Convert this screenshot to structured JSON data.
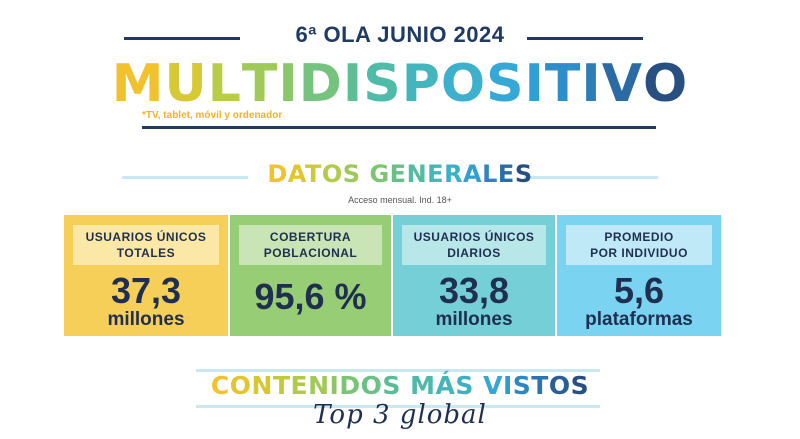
{
  "header": {
    "wave": "6ª OLA JUNIO 2024",
    "title_letters": [
      {
        "ch": "M",
        "color": "#f2c12e"
      },
      {
        "ch": "U",
        "color": "#d7c835"
      },
      {
        "ch": "L",
        "color": "#b8cc46"
      },
      {
        "ch": "T",
        "color": "#9fca57"
      },
      {
        "ch": "I",
        "color": "#8ac66a"
      },
      {
        "ch": "D",
        "color": "#74c37e"
      },
      {
        "ch": "I",
        "color": "#5fbf94"
      },
      {
        "ch": "S",
        "color": "#4fbba9"
      },
      {
        "ch": "P",
        "color": "#43b6bd"
      },
      {
        "ch": "O",
        "color": "#3cb0cc"
      },
      {
        "ch": "S",
        "color": "#35a8d6"
      },
      {
        "ch": "I",
        "color": "#329ed8"
      },
      {
        "ch": "T",
        "color": "#2f8dc9"
      },
      {
        "ch": "I",
        "color": "#2c7db8"
      },
      {
        "ch": "V",
        "color": "#2a6ba4"
      },
      {
        "ch": "O",
        "color": "#274f82"
      }
    ],
    "note": "*TV, tablet, móvil y ordenador"
  },
  "datos": {
    "title_letters": [
      {
        "ch": "D",
        "color": "#f2c12e"
      },
      {
        "ch": "A",
        "color": "#e2c530"
      },
      {
        "ch": "T",
        "color": "#cdc93c"
      },
      {
        "ch": "O",
        "color": "#b3cb4a"
      },
      {
        "ch": "S",
        "color": "#9cc95a"
      },
      {
        "ch": " ",
        "color": "#000000"
      },
      {
        "ch": "G",
        "color": "#7fc470"
      },
      {
        "ch": "E",
        "color": "#66c088"
      },
      {
        "ch": "N",
        "color": "#52bca0"
      },
      {
        "ch": "E",
        "color": "#44b7b6"
      },
      {
        "ch": "R",
        "color": "#3aafc8"
      },
      {
        "ch": "A",
        "color": "#339fd0"
      },
      {
        "ch": "L",
        "color": "#2e86bc"
      },
      {
        "ch": "E",
        "color": "#2a6ea6"
      },
      {
        "ch": "S",
        "color": "#274f82"
      }
    ],
    "subtitle": "Acceso mensual. Ind. 18+"
  },
  "cards": [
    {
      "label": "USUARIOS ÚNICOS\nTOTALES",
      "value": "37,3",
      "unit": "millones",
      "bg": "#f5cf58",
      "label_bg": "#fbe7a6"
    },
    {
      "label": "COBERTURA\nPOBLACIONAL",
      "value": "95,6 %",
      "unit": "",
      "bg": "#97cd74",
      "label_bg": "#c9e5b6"
    },
    {
      "label": "USUARIOS ÚNICOS\nDIARIOS",
      "value": "33,8",
      "unit": "millones",
      "bg": "#74d0d6",
      "label_bg": "#b8e7ea"
    },
    {
      "label": "PROMEDIO\nPOR INDIVIDUO",
      "value": "5,6",
      "unit": "plataformas",
      "bg": "#7ad3f0",
      "label_bg": "#bfe9f7"
    }
  ],
  "contenidos": {
    "title_letters": [
      {
        "ch": "C",
        "color": "#f2c12e"
      },
      {
        "ch": "O",
        "color": "#e6c42f"
      },
      {
        "ch": "N",
        "color": "#d6c733"
      },
      {
        "ch": "T",
        "color": "#c4c93b"
      },
      {
        "ch": "E",
        "color": "#b1ca47"
      },
      {
        "ch": "N",
        "color": "#9fca55"
      },
      {
        "ch": "I",
        "color": "#8dc764"
      },
      {
        "ch": "D",
        "color": "#7bc474"
      },
      {
        "ch": "O",
        "color": "#6ac185"
      },
      {
        "ch": "S",
        "color": "#5bbd97"
      },
      {
        "ch": " ",
        "color": "#000000"
      },
      {
        "ch": "M",
        "color": "#4db9a9"
      },
      {
        "ch": "Á",
        "color": "#44b5b9"
      },
      {
        "ch": "S",
        "color": "#3eb0c6"
      },
      {
        "ch": " ",
        "color": "#000000"
      },
      {
        "ch": "V",
        "color": "#37a6d2"
      },
      {
        "ch": "I",
        "color": "#3298cf"
      },
      {
        "ch": "S",
        "color": "#2e87c0"
      },
      {
        "ch": "T",
        "color": "#2b74ad"
      },
      {
        "ch": "O",
        "color": "#285f97"
      },
      {
        "ch": "S",
        "color": "#274f82"
      }
    ],
    "subtitle": "Top 3 global"
  }
}
